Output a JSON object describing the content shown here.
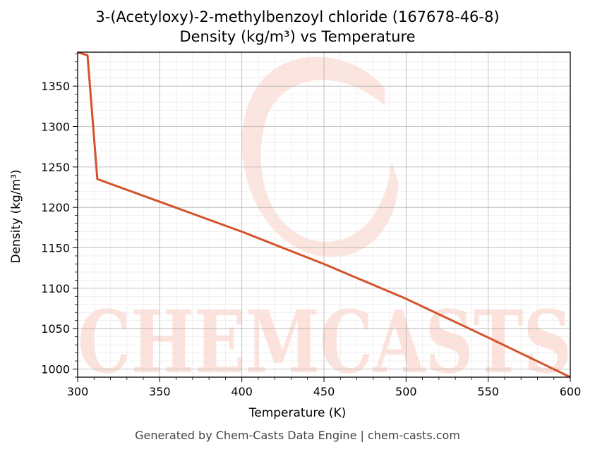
{
  "chart_data": {
    "type": "line",
    "title": "3-(Acetyloxy)-2-methylbenzoyl chloride (167678-46-8)",
    "subtitle": "Density (kg/m³) vs Temperature",
    "xlabel": "Temperature (K)",
    "ylabel": "Density (kg/m³)",
    "xlim": [
      300,
      600
    ],
    "ylim": [
      990,
      1392
    ],
    "xticks": [
      300,
      350,
      400,
      450,
      500,
      550,
      600
    ],
    "yticks": [
      1000,
      1050,
      1100,
      1150,
      1200,
      1250,
      1300,
      1350
    ],
    "grid": true,
    "series": [
      {
        "color": "#d4522a",
        "x": [
          300,
          306,
          312,
          350,
          400,
          450,
          500,
          550,
          600
        ],
        "y": [
          1392,
          1388,
          1235,
          1207,
          1170,
          1130,
          1087,
          1039,
          990
        ]
      }
    ]
  },
  "watermark": {
    "text": "CHEMCASTS",
    "color": "#fbd5cc"
  },
  "footer": "Generated by Chem-Casts Data Engine | chem-casts.com"
}
